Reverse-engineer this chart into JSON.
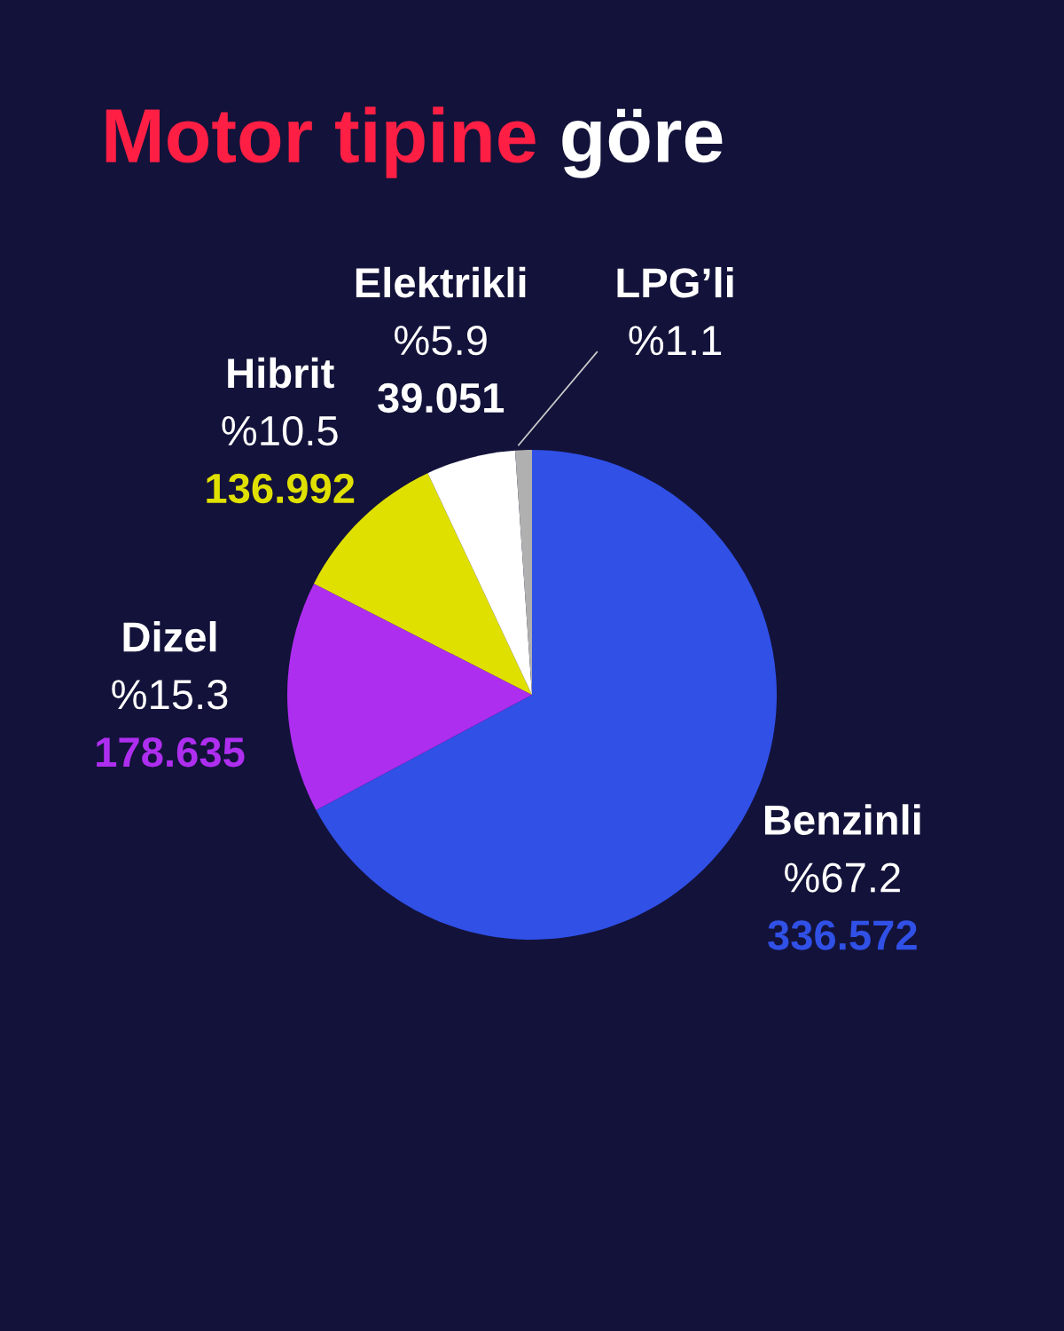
{
  "chart_data": {
    "type": "pie",
    "title": "Motor tipine göre",
    "categories": [
      "Benzinli",
      "Dizel",
      "Hibrit",
      "Elektrikli",
      "LPG’li"
    ],
    "values": [
      67.2,
      15.3,
      10.5,
      5.9,
      1.1
    ],
    "colors": [
      "#3050e6",
      "#ae2ef0",
      "#e0e000",
      "#ffffff",
      "#b0b0b0"
    ],
    "value_labels": [
      "%67.2\n336.572",
      "%15.3\n178.635",
      "%10.5\n136.992",
      "%5.9\n39.051",
      "%1.1"
    ]
  }
}
